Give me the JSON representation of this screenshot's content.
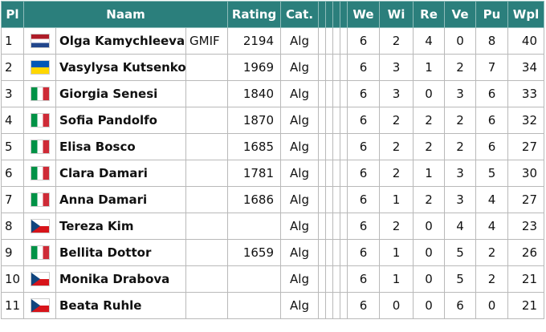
{
  "header": [
    "Pl",
    "Naam",
    "Rating",
    "Cat.",
    "We",
    "Wi",
    "Re",
    "Ve",
    "Pu",
    "Wpl"
  ],
  "rows": [
    {
      "pl": 1,
      "name": "Olga Kamychleeva",
      "title": "GMIF",
      "rating": 2194,
      "cat": "Alg",
      "we": 6,
      "wi": 2,
      "re": 4,
      "ve": 0,
      "pu": 8,
      "wpl": 40
    },
    {
      "pl": 2,
      "name": "Vasylysa Kutsenko",
      "rating": 1969,
      "cat": "Alg",
      "we": 6,
      "wi": 3,
      "re": 1,
      "ve": 2,
      "pu": 7,
      "wpl": 34
    },
    {
      "pl": 3,
      "name": "Giorgia Senesi",
      "rating": 1840,
      "cat": "Alg",
      "we": 6,
      "wi": 3,
      "re": 0,
      "ve": 3,
      "pu": 6,
      "wpl": 33
    },
    {
      "pl": 4,
      "name": "Sofia Pandolfo",
      "rating": 1870,
      "cat": "Alg",
      "we": 6,
      "wi": 2,
      "re": 2,
      "ve": 2,
      "pu": 6,
      "wpl": 32
    },
    {
      "pl": 5,
      "name": "Elisa Bosco",
      "rating": 1685,
      "cat": "Alg",
      "we": 6,
      "wi": 2,
      "re": 2,
      "ve": 2,
      "pu": 6,
      "wpl": 27
    },
    {
      "pl": 6,
      "name": "Clara Damari",
      "rating": 1781,
      "cat": "Alg",
      "we": 6,
      "wi": 2,
      "re": 1,
      "ve": 3,
      "pu": 5,
      "wpl": 30
    },
    {
      "pl": 7,
      "name": "Anna Damari",
      "rating": 1686,
      "cat": "Alg",
      "we": 6,
      "wi": 1,
      "re": 2,
      "ve": 3,
      "pu": 4,
      "wpl": 27
    },
    {
      "pl": 8,
      "name": "Tereza Kim",
      "cat": "Alg",
      "we": 6,
      "wi": 2,
      "re": 0,
      "ve": 4,
      "pu": 4,
      "wpl": 23
    },
    {
      "pl": 9,
      "name": "Bellita Dottor",
      "rating": 1659,
      "cat": "Alg",
      "we": 6,
      "wi": 1,
      "re": 0,
      "ve": 5,
      "pu": 2,
      "wpl": 26
    },
    {
      "pl": 10,
      "name": "Monika Drabova",
      "cat": "Alg",
      "we": 6,
      "wi": 1,
      "re": 0,
      "ve": 5,
      "pu": 2,
      "wpl": 21
    },
    {
      "pl": 11,
      "name": "Beata Ruhle",
      "cat": "Alg",
      "we": 6,
      "wi": 0,
      "re": 0,
      "ve": 6,
      "pu": 0,
      "wpl": 21
    }
  ]
}
